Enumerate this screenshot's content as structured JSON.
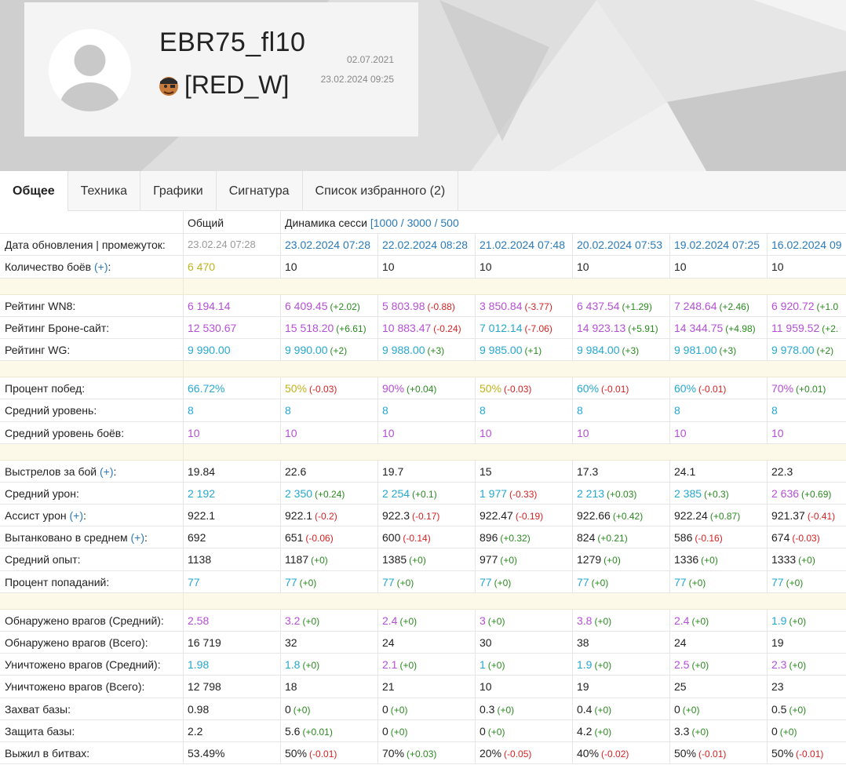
{
  "profile": {
    "nickname": "EBR75_fl10",
    "clan_tag": "[RED_W]",
    "registered": "02.07.2021",
    "last_battle": "23.02.2024 09:25"
  },
  "icons": {
    "avatar": "avatar-placeholder-icon",
    "clan": "clan-emblem-icon"
  },
  "tabs": [
    {
      "label": "Общее",
      "active": true
    },
    {
      "label": "Техника"
    },
    {
      "label": "Графики"
    },
    {
      "label": "Сигнатура"
    },
    {
      "label": "Список избранного (2)"
    }
  ],
  "table": {
    "header": {
      "overall": "Общий",
      "sessions": "Динамика сесси",
      "ranges": "[1000 / 3000 / 500"
    },
    "update_label": "Дата обновления | промежуток:",
    "overall_update": "23.02.24 07:28",
    "session_dates": [
      "23.02.2024 07:28",
      "22.02.2024 08:28",
      "21.02.2024 07:48",
      "20.02.2024 07:53",
      "19.02.2024 07:25",
      "16.02.2024 09"
    ],
    "battles": {
      "label": "Количество боёв",
      "plus": "(+)",
      "suffix": ":",
      "overall": "6 470",
      "values": [
        "10",
        "10",
        "10",
        "10",
        "10",
        "10"
      ]
    },
    "wn8": {
      "label": "Рейтинг WN8:",
      "overall": "6 194.14",
      "values": [
        "6 409.45",
        "5 803.98",
        "3 850.84",
        "6 437.54",
        "7 248.64",
        "6 920.72"
      ],
      "deltas": [
        "(+2.02)",
        "(-0.88)",
        "(-3.77)",
        "(+1.29)",
        "(+2.46)",
        "(+1.0"
      ]
    },
    "bronesite": {
      "label": "Рейтинг Броне-сайт:",
      "overall": "12 530.67",
      "values": [
        "15 518.20",
        "10 883.47",
        "7 012.14",
        "14 923.13",
        "14 344.75",
        "11 959.52"
      ],
      "deltas": [
        "(+6.61)",
        "(-0.24)",
        "(-7.06)",
        "(+5.91)",
        "(+4.98)",
        "(+2."
      ]
    },
    "wg": {
      "label": "Рейтинг WG:",
      "overall": "9 990.00",
      "values": [
        "9 990.00",
        "9 988.00",
        "9 985.00",
        "9 984.00",
        "9 981.00",
        "9 978.00"
      ],
      "deltas": [
        "(+2)",
        "(+3)",
        "(+1)",
        "(+3)",
        "(+3)",
        "(+2)"
      ]
    },
    "winrate": {
      "label": "Процент побед:",
      "overall": "66.72%",
      "values": [
        "50%",
        "90%",
        "50%",
        "60%",
        "60%",
        "70%"
      ],
      "deltas": [
        "(-0.03)",
        "(+0.04)",
        "(-0.03)",
        "(-0.01)",
        "(-0.01)",
        "(+0.01)"
      ]
    },
    "avg_tier": {
      "label": "Средний уровень:",
      "overall": "8",
      "values": [
        "8",
        "8",
        "8",
        "8",
        "8",
        "8"
      ]
    },
    "avg_battle_tier": {
      "label": "Средний уровень боёв:",
      "overall": "10",
      "values": [
        "10",
        "10",
        "10",
        "10",
        "10",
        "10"
      ]
    },
    "shots": {
      "label": "Выстрелов за бой",
      "plus": "(+)",
      "suffix": ":",
      "overall": "19.84",
      "values": [
        "22.6",
        "19.7",
        "15",
        "17.3",
        "24.1",
        "22.3"
      ]
    },
    "avg_damage": {
      "label": "Средний урон:",
      "overall": "2 192",
      "values": [
        "2 350",
        "2 254",
        "1 977",
        "2 213",
        "2 385",
        "2 636"
      ],
      "deltas": [
        "(+0.24)",
        "(+0.1)",
        "(-0.33)",
        "(+0.03)",
        "(+0.3)",
        "(+0.69)"
      ]
    },
    "assist": {
      "label": "Ассист урон",
      "plus": "(+)",
      "suffix": ":",
      "overall": "922.1",
      "values": [
        "922.1",
        "922.3",
        "922.47",
        "922.66",
        "922.24",
        "921.37"
      ],
      "deltas": [
        "(-0.2)",
        "(-0.17)",
        "(-0.19)",
        "(+0.42)",
        "(+0.87)",
        "(-0.41)"
      ]
    },
    "tanked": {
      "label": "Вытанковано в среднем",
      "plus": "(+)",
      "suffix": ":",
      "overall": "692",
      "values": [
        "651",
        "600",
        "896",
        "824",
        "586",
        "674"
      ],
      "deltas": [
        "(-0.06)",
        "(-0.14)",
        "(+0.32)",
        "(+0.21)",
        "(-0.16)",
        "(-0.03)"
      ]
    },
    "avg_xp": {
      "label": "Средний опыт:",
      "overall": "1138",
      "values": [
        "1187",
        "1385",
        "977",
        "1279",
        "1336",
        "1333"
      ],
      "deltas": [
        "(+0)",
        "(+0)",
        "(+0)",
        "(+0)",
        "(+0)",
        "(+0)"
      ]
    },
    "hit_rate": {
      "label": "Процент попаданий:",
      "overall": "77",
      "values": [
        "77",
        "77",
        "77",
        "77",
        "77",
        "77"
      ],
      "deltas": [
        "(+0)",
        "(+0)",
        "(+0)",
        "(+0)",
        "(+0)",
        "(+0)"
      ]
    },
    "spotted_avg": {
      "label": "Обнаружено врагов (Средний):",
      "overall": "2.58",
      "values": [
        "3.2",
        "2.4",
        "3",
        "3.8",
        "2.4",
        "1.9"
      ],
      "deltas": [
        "(+0)",
        "(+0)",
        "(+0)",
        "(+0)",
        "(+0)",
        "(+0)"
      ]
    },
    "spotted_total": {
      "label": "Обнаружено врагов (Всего):",
      "overall": "16 719",
      "values": [
        "32",
        "24",
        "30",
        "38",
        "24",
        "19"
      ]
    },
    "kills_avg": {
      "label": "Уничтожено врагов (Средний):",
      "overall": "1.98",
      "values": [
        "1.8",
        "2.1",
        "1",
        "1.9",
        "2.5",
        "2.3"
      ],
      "deltas": [
        "(+0)",
        "(+0)",
        "(+0)",
        "(+0)",
        "(+0)",
        "(+0)"
      ]
    },
    "kills_total": {
      "label": "Уничтожено врагов (Всего):",
      "overall": "12 798",
      "values": [
        "18",
        "21",
        "10",
        "19",
        "25",
        "23"
      ]
    },
    "capture": {
      "label": "Захват базы:",
      "overall": "0.98",
      "values": [
        "0",
        "0",
        "0.3",
        "0.4",
        "0",
        "0.5"
      ],
      "deltas": [
        "(+0)",
        "(+0)",
        "(+0)",
        "(+0)",
        "(+0)",
        "(+0)"
      ]
    },
    "defense": {
      "label": "Защита базы:",
      "overall": "2.2",
      "values": [
        "5.6",
        "0",
        "0",
        "4.2",
        "3.3",
        "0"
      ],
      "deltas": [
        "(+0.01)",
        "(+0)",
        "(+0)",
        "(+0)",
        "(+0)",
        "(+0)"
      ]
    },
    "survived": {
      "label": "Выжил в битвах:",
      "overall": "53.49%",
      "values": [
        "50%",
        "70%",
        "20%",
        "40%",
        "50%",
        "50%"
      ],
      "deltas": [
        "(-0.01)",
        "(+0.03)",
        "(-0.05)",
        "(-0.02)",
        "(-0.01)",
        "(-0.01)"
      ]
    }
  },
  "colors": {
    "purple": "#b64fd7",
    "blue": "#26a7d0",
    "yellow": "#c0b21b",
    "grey": "#9a9a9a",
    "positive": "#2a8a1f",
    "negative": "#d72222",
    "link": "#2a7ab8"
  }
}
